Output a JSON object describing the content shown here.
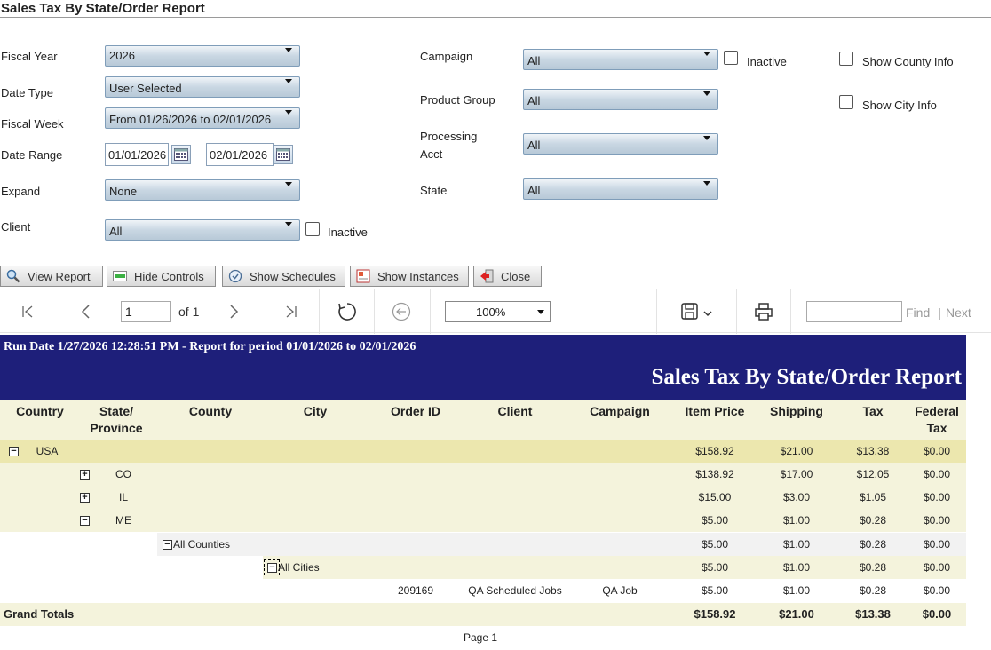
{
  "title": "Sales Tax By State/Order Report",
  "params": {
    "fiscal_year_label": "Fiscal Year",
    "fiscal_year_value": "2026",
    "date_type_label": "Date Type",
    "date_type_value": "User Selected",
    "fiscal_week_label": "Fiscal Week",
    "fiscal_week_value": "From 01/26/2026 to 02/01/2026",
    "date_range_label": "Date Range",
    "date_from": "01/01/2026",
    "date_to": "02/01/2026",
    "expand_label": "Expand",
    "expand_value": "None",
    "client_label": "Client",
    "client_value": "All",
    "client_inactive_label": "Inactive",
    "campaign_label": "Campaign",
    "campaign_value": "All",
    "campaign_inactive_label": "Inactive",
    "product_group_label": "Product Group",
    "product_group_value": "All",
    "processing_acct_label_1": "Processing",
    "processing_acct_label_2": "Acct",
    "processing_acct_value": "All",
    "state_label": "State",
    "state_value": "All",
    "show_county_label": "Show County Info",
    "show_city_label": "Show City Info"
  },
  "buttons": {
    "view_report": "View Report",
    "hide_controls": "Hide Controls",
    "show_schedules": "Show Schedules",
    "show_instances": "Show Instances",
    "close": "Close"
  },
  "toolbar": {
    "page_value": "1",
    "of_pages": "of 1",
    "zoom": "100%",
    "find_label": "Find",
    "sep": "|",
    "next_label": "Next"
  },
  "report": {
    "run_line": "Run Date 1/27/2026 12:28:51 PM - Report for period 01/01/2026 to 02/01/2026",
    "title": "Sales Tax By State/Order Report",
    "columns": {
      "country": "Country",
      "state_1": "State/",
      "state_2": "Province",
      "county": "County",
      "city": "City",
      "order_id": "Order ID",
      "client": "Client",
      "campaign": "Campaign",
      "item_price": "Item Price",
      "shipping": "Shipping",
      "tax": "Tax",
      "federal_1": "Federal",
      "federal_2": "Tax"
    },
    "rows": {
      "usa": {
        "name": "USA",
        "item_price": "$158.92",
        "shipping": "$21.00",
        "tax": "$13.38",
        "federal": "$0.00"
      },
      "co": {
        "name": "CO",
        "item_price": "$138.92",
        "shipping": "$17.00",
        "tax": "$12.05",
        "federal": "$0.00"
      },
      "il": {
        "name": "IL",
        "item_price": "$15.00",
        "shipping": "$3.00",
        "tax": "$1.05",
        "federal": "$0.00"
      },
      "me": {
        "name": "ME",
        "item_price": "$5.00",
        "shipping": "$1.00",
        "tax": "$0.28",
        "federal": "$0.00"
      },
      "counties": {
        "name": "All Counties",
        "item_price": "$5.00",
        "shipping": "$1.00",
        "tax": "$0.28",
        "federal": "$0.00"
      },
      "cities": {
        "name": "All Cities",
        "item_price": "$5.00",
        "shipping": "$1.00",
        "tax": "$0.28",
        "federal": "$0.00"
      },
      "order": {
        "order_id": "209169",
        "client": "QA Scheduled Jobs",
        "campaign": "QA Job",
        "item_price": "$5.00",
        "shipping": "$1.00",
        "tax": "$0.28",
        "federal": "$0.00"
      }
    },
    "grand_totals": {
      "label": "Grand Totals",
      "item_price": "$158.92",
      "shipping": "$21.00",
      "tax": "$13.38",
      "federal": "$0.00"
    },
    "page_label": "Page 1"
  },
  "colors": {
    "header_bg": "#1e1f7a",
    "band_yellow": "#ece7ae",
    "band_light": "#f4f3dc"
  }
}
